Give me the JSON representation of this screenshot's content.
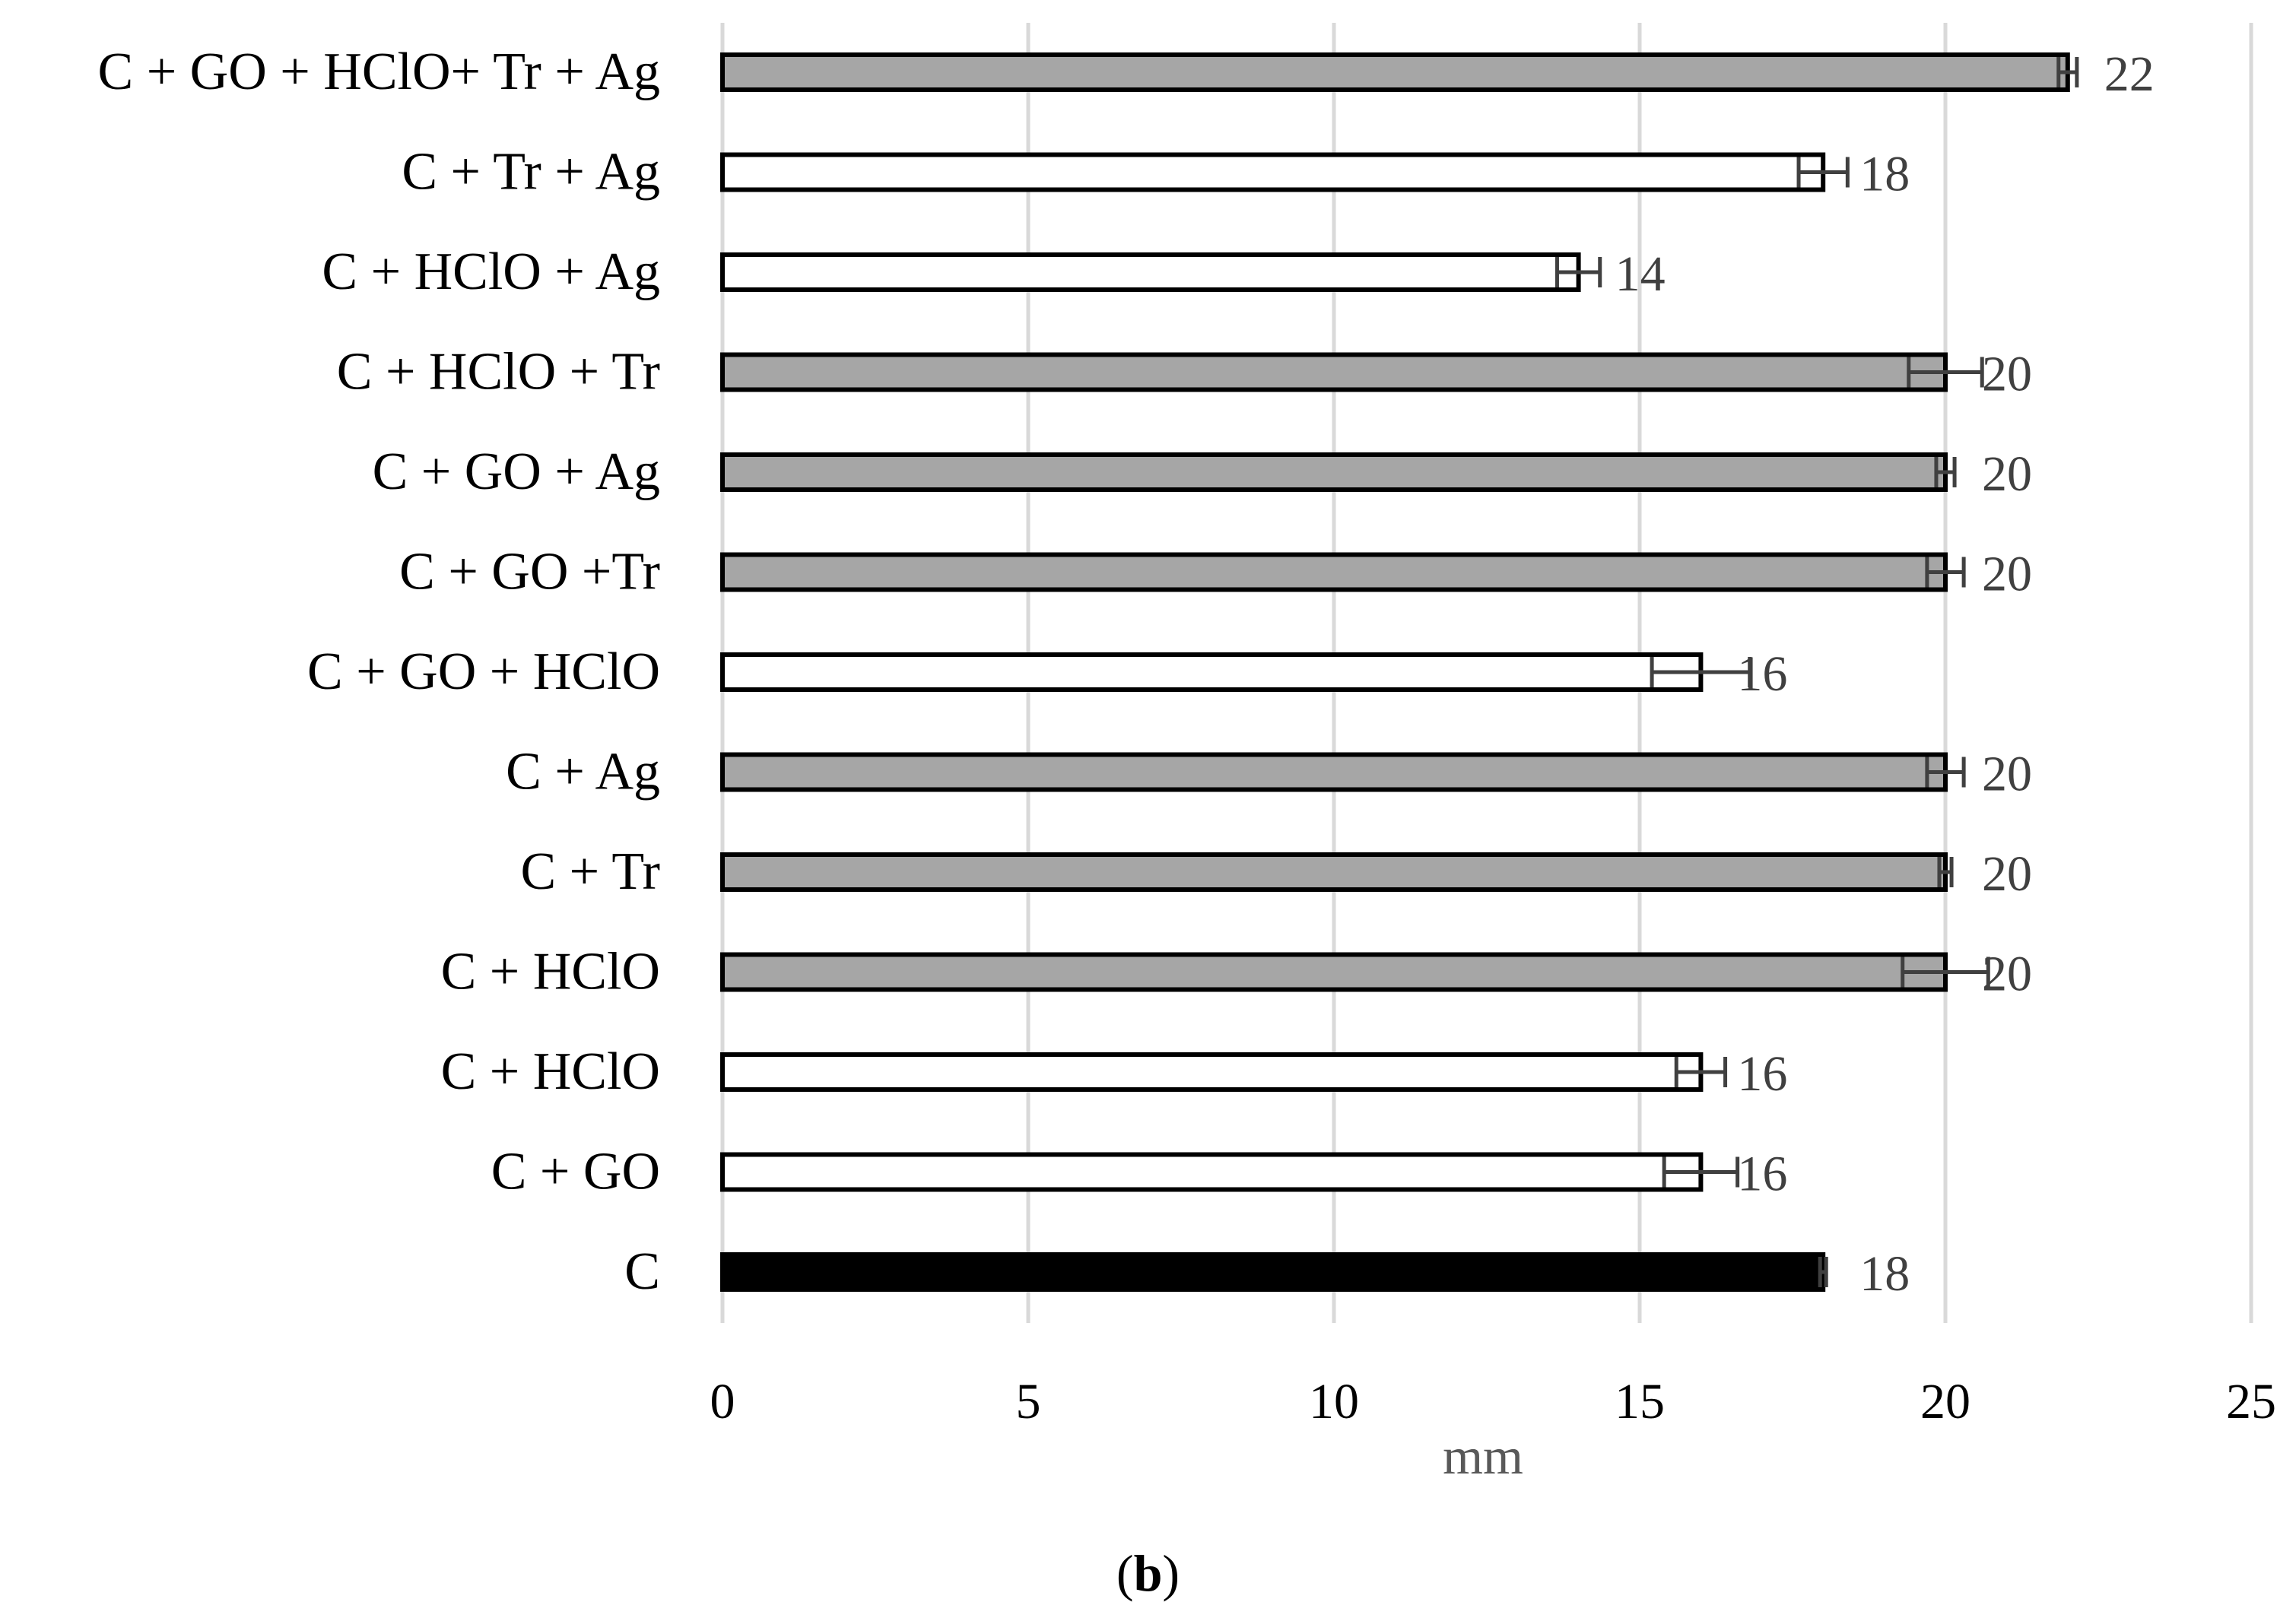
{
  "chart_data": {
    "type": "bar",
    "orientation": "horizontal",
    "categories": [
      "C + GO + HClO+ Tr + Ag",
      "C + Tr + Ag",
      "C + HClO + Ag",
      "C + HClO + Tr",
      "C + GO + Ag",
      "C + GO +Tr",
      "C + GO + HClO",
      "C + Ag",
      "C + Tr",
      "C + HClO",
      "C + HClO",
      "C + GO",
      "C"
    ],
    "values": [
      22,
      18,
      14,
      20,
      20,
      20,
      16,
      20,
      20,
      20,
      16,
      16,
      18
    ],
    "errors": [
      0.15,
      0.4,
      0.35,
      0.6,
      0.15,
      0.3,
      0.8,
      0.3,
      0.1,
      0.7,
      0.4,
      0.6,
      0.05
    ],
    "bar_fill": [
      "gray",
      "white",
      "white",
      "gray",
      "gray",
      "gray",
      "white",
      "gray",
      "gray",
      "gray",
      "white",
      "white",
      "black"
    ],
    "data_labels": [
      "22",
      "18",
      "14",
      "20",
      "20",
      "20",
      "16",
      "20",
      "20",
      "20",
      "16",
      "16",
      "18"
    ],
    "xlabel": "mm",
    "ylabel": "",
    "title": "",
    "xlim": [
      0,
      25
    ],
    "xticks": [
      "0",
      "5",
      "10",
      "15",
      "20",
      "25"
    ],
    "grid": "vertical",
    "legend": "none",
    "colors": {
      "gray": "#a6a6a6",
      "white": "#ffffff",
      "black": "#000000",
      "outline": "#000000",
      "grid": "#d9d9d9",
      "error": "#404040"
    }
  },
  "caption": {
    "prefix": "(",
    "letter": "b",
    "suffix": ")"
  }
}
